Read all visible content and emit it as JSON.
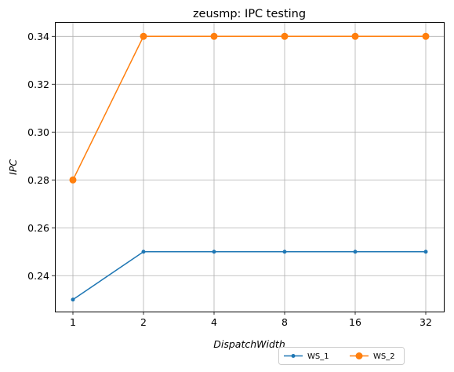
{
  "chart_data": {
    "type": "line",
    "title": "zeusmp: IPC testing",
    "xlabel": "DispatchWidth",
    "ylabel": "IPC",
    "categories": [
      "1",
      "2",
      "4",
      "8",
      "16",
      "32"
    ],
    "ylim": [
      0.225,
      0.346
    ],
    "yticks": [
      "0.24",
      "0.26",
      "0.28",
      "0.30",
      "0.32",
      "0.34"
    ],
    "ytick_values": [
      0.24,
      0.26,
      0.28,
      0.3,
      0.32,
      0.34
    ],
    "grid": true,
    "legend_position": "below-right",
    "series": [
      {
        "name": "WS_1",
        "color": "#1f77b4",
        "marker": "small-dot",
        "values": [
          0.23,
          0.25,
          0.25,
          0.25,
          0.25,
          0.25
        ]
      },
      {
        "name": "WS_2",
        "color": "#ff7f0e",
        "marker": "circle",
        "values": [
          0.28,
          0.34,
          0.34,
          0.34,
          0.34,
          0.34
        ]
      }
    ]
  }
}
